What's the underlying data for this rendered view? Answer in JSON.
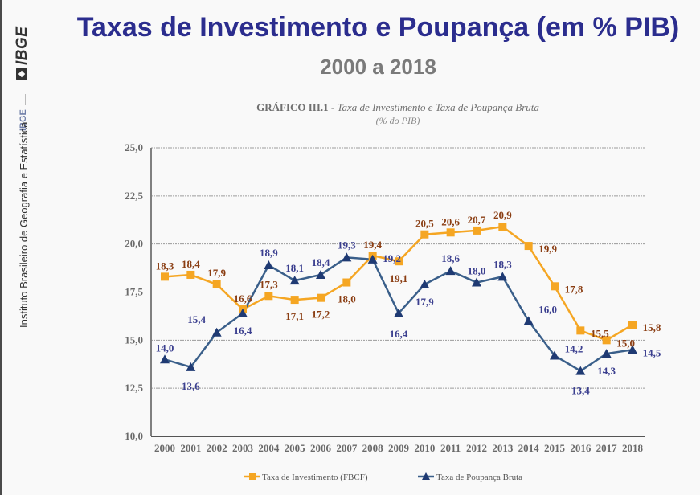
{
  "sidebar": {
    "logo_text": "IBGE",
    "short_name": "IBGE",
    "long_name": "Instituto Brasileiro de Geografia e Estatística"
  },
  "header": {
    "title": "Taxas de Investimento e Poupança  (em % PIB)",
    "subtitle": "2000 a 2018"
  },
  "colors": {
    "title": "#2b2d8e",
    "investimento_line": "#f5a623",
    "investimento_label": "#8a3d12",
    "poupanca_line": "#3a5f8a",
    "poupanca_marker": "#1f3a73",
    "poupanca_label": "#3b3f8f"
  },
  "chart_data": {
    "type": "line",
    "title_prefix": "GRÁFICO III.1",
    "title_sep": " - ",
    "title": "Taxa de Investimento e Taxa de Poupança Bruta",
    "subtitle": "(% do PIB)",
    "xlabel": "",
    "ylabel": "",
    "ylim": [
      10.0,
      25.0
    ],
    "yticks": [
      "10,0",
      "12,5",
      "15,0",
      "17,5",
      "20,0",
      "22,5",
      "25,0"
    ],
    "ytick_values": [
      10.0,
      12.5,
      15.0,
      17.5,
      20.0,
      22.5,
      25.0
    ],
    "grid": true,
    "legend_position": "bottom-center",
    "categories": [
      "2000",
      "2001",
      "2002",
      "2003",
      "2004",
      "2005",
      "2006",
      "2007",
      "2008",
      "2009",
      "2010",
      "2011",
      "2012",
      "2013",
      "2014",
      "2015",
      "2016",
      "2017",
      "2018"
    ],
    "series": [
      {
        "name": "Taxa de Investimento (FBCF)",
        "marker": "square",
        "values": [
          18.3,
          18.4,
          17.9,
          16.6,
          17.3,
          17.1,
          17.2,
          18.0,
          19.4,
          19.1,
          20.5,
          20.6,
          20.7,
          20.9,
          19.9,
          17.8,
          15.5,
          15.0,
          15.8
        ],
        "labels": [
          "18,3",
          "18,4",
          "17,9",
          "16,6",
          "17,3",
          "17,1",
          "17,2",
          "18,0",
          "19,4",
          "19,1",
          "20,5",
          "20,6",
          "20,7",
          "20,9",
          "19,9",
          "17,8",
          "15,5",
          "15,0",
          "15,8"
        ]
      },
      {
        "name": "Taxa de Poupança Bruta",
        "marker": "triangle",
        "values": [
          14.0,
          13.6,
          15.4,
          16.4,
          18.9,
          18.1,
          18.4,
          19.3,
          19.2,
          16.4,
          17.9,
          18.6,
          18.0,
          18.3,
          16.0,
          14.2,
          13.4,
          14.3,
          14.5
        ],
        "labels": [
          "14,0",
          "13,6",
          "15,4",
          "16,4",
          "18,9",
          "18,1",
          "18,4",
          "19,3",
          "19,2",
          "16,4",
          "17,9",
          "18,6",
          "18,0",
          "18,3",
          "16,0",
          "14,2",
          "13,4",
          "14,3",
          "14,5"
        ]
      }
    ]
  }
}
